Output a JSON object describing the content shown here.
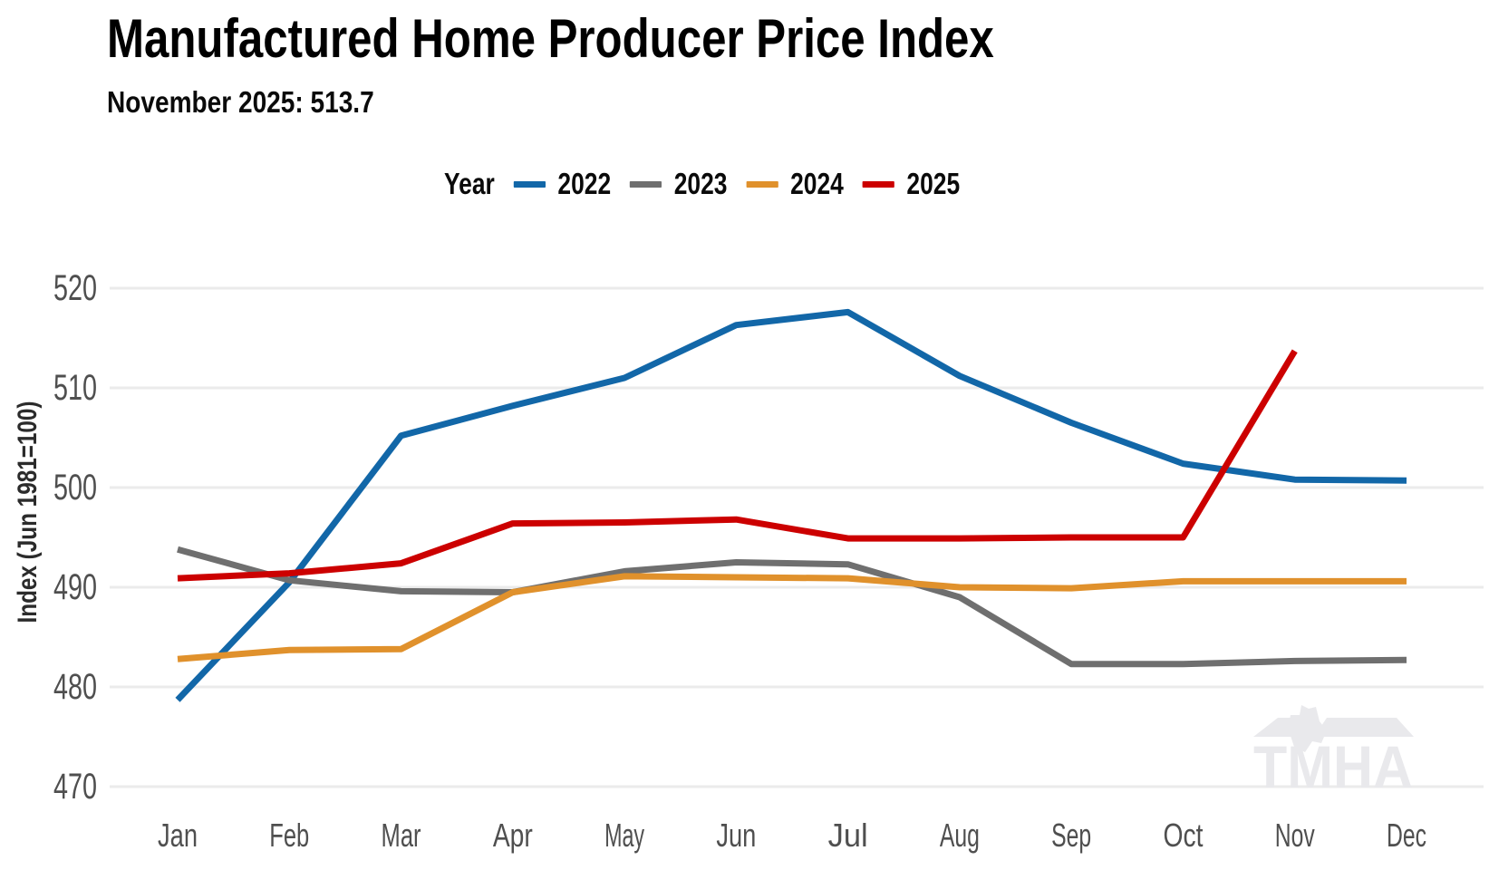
{
  "header": {
    "title": "Manufactured Home Producer Price Index",
    "subtitle": "November 2025: 513.7"
  },
  "legend": {
    "title": "Year"
  },
  "watermark": "TMHA",
  "colors": {
    "grid": "#ebebeb",
    "tick_text": "#4f4f4f",
    "axis_title_text": "#2b2b2b",
    "title_text": "#000000",
    "watermark": "#e9e9ec"
  },
  "chart_data": {
    "type": "line",
    "title": "Manufactured Home Producer Price Index",
    "subtitle": "November 2025: 513.7",
    "xlabel": "",
    "ylabel": "Index (Jun 1981=100)",
    "categories": [
      "Jan",
      "Feb",
      "Mar",
      "Apr",
      "May",
      "Jun",
      "Jul",
      "Aug",
      "Sep",
      "Oct",
      "Nov",
      "Dec"
    ],
    "ylim": [
      470,
      520
    ],
    "yticks": [
      470,
      480,
      490,
      500,
      510,
      520
    ],
    "grid": "horizontal-only",
    "legend_position": "top",
    "legend_title": "Year",
    "series": [
      {
        "name": "2022",
        "color": "#1267a8",
        "values": [
          478.7,
          490.5,
          505.2,
          508.2,
          511.0,
          516.3,
          517.6,
          511.2,
          506.5,
          502.4,
          500.8,
          500.7
        ]
      },
      {
        "name": "2023",
        "color": "#6f6f6f",
        "values": [
          493.8,
          490.7,
          489.6,
          489.5,
          491.6,
          492.5,
          492.3,
          489.0,
          482.3,
          482.3,
          482.6,
          482.7
        ]
      },
      {
        "name": "2024",
        "color": "#e0912c",
        "values": [
          482.8,
          483.7,
          483.8,
          489.5,
          491.1,
          491.0,
          490.9,
          490.0,
          489.9,
          490.6,
          490.6,
          490.6
        ]
      },
      {
        "name": "2025",
        "color": "#cc0000",
        "values": [
          490.9,
          491.4,
          492.4,
          496.4,
          496.5,
          496.8,
          494.9,
          494.9,
          495.0,
          495.0,
          513.7,
          null
        ]
      }
    ]
  }
}
